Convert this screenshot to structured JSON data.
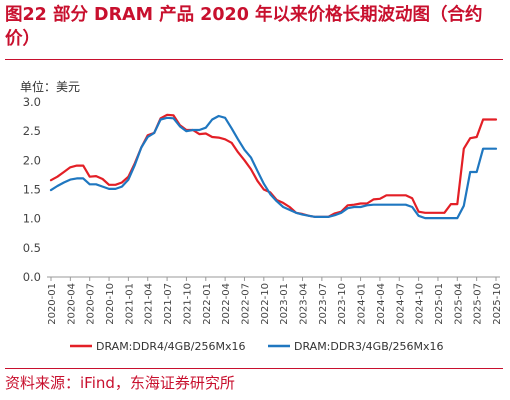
{
  "title": "图22 部分 DRAM 产品 2020 年以来价格长期波动图（合约价）",
  "unit_label": "单位：美元",
  "source": "资料来源：iFind，东海证券研究所",
  "colors": {
    "accent": "#c8102e",
    "ddr4": "#e31f26",
    "ddr3": "#1f77c0"
  },
  "chart_data": {
    "type": "line",
    "title": "",
    "xlabel": "",
    "ylabel": "单位：美元",
    "ylim": [
      0,
      3.0
    ],
    "yticks": [
      "0.0",
      "0.5",
      "1.0",
      "1.5",
      "2.0",
      "2.5",
      "3.0"
    ],
    "grid": false,
    "legend_position": "bottom",
    "x": [
      "2020-01",
      "2020-02",
      "2020-03",
      "2020-04",
      "2020-05",
      "2020-06",
      "2020-07",
      "2020-08",
      "2020-09",
      "2020-10",
      "2020-11",
      "2020-12",
      "2021-01",
      "2021-02",
      "2021-03",
      "2021-04",
      "2021-05",
      "2021-06",
      "2021-07",
      "2021-08",
      "2021-09",
      "2021-10",
      "2021-11",
      "2021-12",
      "2022-01",
      "2022-02",
      "2022-03",
      "2022-04",
      "2022-05",
      "2022-06",
      "2022-07",
      "2022-08",
      "2022-09",
      "2022-10",
      "2022-11",
      "2022-12",
      "2023-01",
      "2023-02",
      "2023-03",
      "2023-04",
      "2023-05",
      "2023-06",
      "2023-07",
      "2023-08",
      "2023-09",
      "2023-10",
      "2023-11",
      "2023-12",
      "2024-01",
      "2024-02",
      "2024-03",
      "2024-04",
      "2024-05",
      "2024-06",
      "2024-07",
      "2024-08",
      "2024-09",
      "2024-10",
      "2024-11",
      "2024-12",
      "2025-01",
      "2025-02",
      "2025-03",
      "2025-04",
      "2025-05",
      "2025-06",
      "2025-07",
      "2025-08",
      "2025-09",
      "2025-10"
    ],
    "xtick_labels": [
      "2020-01",
      "2020-04",
      "2020-07",
      "2020-10",
      "2021-01",
      "2021-04",
      "2021-07",
      "2021-10",
      "2022-01",
      "2022-04",
      "2022-07",
      "2022-10",
      "2023-01",
      "2023-04",
      "2023-07",
      "2023-10",
      "2024-01",
      "2024-04",
      "2024-07",
      "2024-10",
      "2025-01",
      "2025-04",
      "2025-07",
      "2025-10"
    ],
    "series": [
      {
        "name": "DRAM:DDR4/4GB/256Mx16",
        "values": [
          1.66,
          1.72,
          1.8,
          1.88,
          1.91,
          1.91,
          1.72,
          1.73,
          1.68,
          1.58,
          1.58,
          1.62,
          1.72,
          1.95,
          2.22,
          2.43,
          2.47,
          2.72,
          2.78,
          2.77,
          2.6,
          2.52,
          2.52,
          2.45,
          2.46,
          2.4,
          2.39,
          2.36,
          2.3,
          2.14,
          2.0,
          1.85,
          1.65,
          1.5,
          1.45,
          1.32,
          1.27,
          1.2,
          1.1,
          1.08,
          1.05,
          1.03,
          1.03,
          1.03,
          1.09,
          1.12,
          1.23,
          1.24,
          1.26,
          1.26,
          1.33,
          1.34,
          1.4,
          1.4,
          1.4,
          1.4,
          1.35,
          1.12,
          1.1,
          1.1,
          1.1,
          1.1,
          1.25,
          1.25,
          2.2,
          2.38,
          2.4,
          2.7,
          2.7,
          2.7
        ]
      },
      {
        "name": "DRAM:DDR3/4GB/256Mx16",
        "values": [
          1.49,
          1.56,
          1.62,
          1.67,
          1.69,
          1.69,
          1.59,
          1.59,
          1.55,
          1.51,
          1.51,
          1.55,
          1.67,
          1.92,
          2.22,
          2.4,
          2.47,
          2.7,
          2.73,
          2.72,
          2.58,
          2.5,
          2.52,
          2.52,
          2.56,
          2.7,
          2.76,
          2.73,
          2.55,
          2.36,
          2.18,
          2.05,
          1.82,
          1.6,
          1.42,
          1.3,
          1.2,
          1.15,
          1.1,
          1.07,
          1.05,
          1.03,
          1.03,
          1.03,
          1.06,
          1.1,
          1.18,
          1.2,
          1.2,
          1.23,
          1.24,
          1.24,
          1.24,
          1.24,
          1.24,
          1.24,
          1.2,
          1.05,
          1.01,
          1.01,
          1.01,
          1.01,
          1.01,
          1.01,
          1.22,
          1.8,
          1.8,
          2.2,
          2.2,
          2.2
        ]
      }
    ]
  }
}
